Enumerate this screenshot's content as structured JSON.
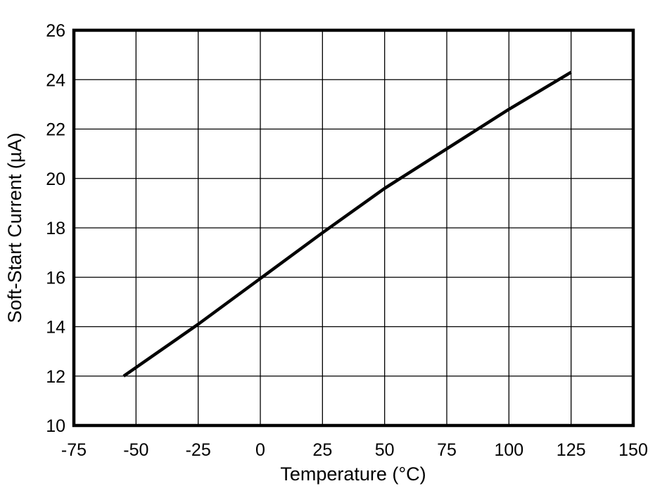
{
  "chart_data": {
    "type": "line",
    "title": "",
    "xlabel": "Temperature (°C)",
    "ylabel": "Soft-Start Current (µA)",
    "xlim": [
      -75,
      150
    ],
    "ylim": [
      10,
      26
    ],
    "xticks": [
      -75,
      -50,
      -25,
      0,
      25,
      50,
      75,
      100,
      125,
      150
    ],
    "yticks": [
      10,
      12,
      14,
      16,
      18,
      20,
      22,
      24,
      26
    ],
    "grid": true,
    "legend": false,
    "series": [
      {
        "name": "soft-start-current",
        "color": "#000000",
        "points": [
          [
            -55,
            12.0
          ],
          [
            -25,
            14.1
          ],
          [
            0,
            15.95
          ],
          [
            25,
            17.8
          ],
          [
            50,
            19.6
          ],
          [
            75,
            21.2
          ],
          [
            100,
            22.8
          ],
          [
            125,
            24.3
          ]
        ]
      }
    ]
  },
  "colors": {
    "background": "#ffffff",
    "frame": "#000000",
    "grid": "#000000",
    "line": "#000000",
    "text": "#000000"
  }
}
